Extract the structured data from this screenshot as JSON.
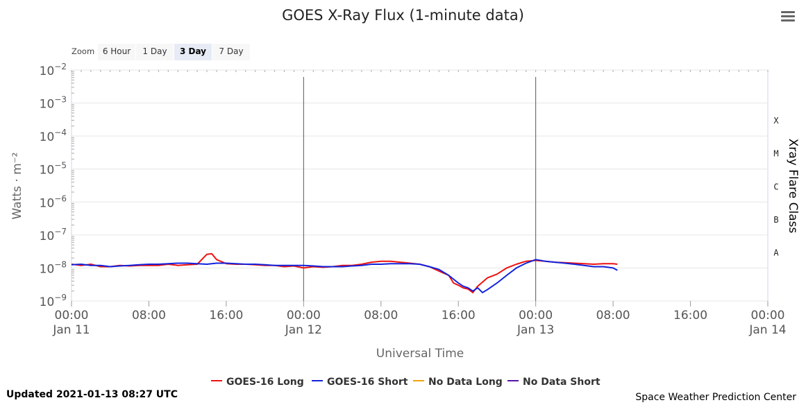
{
  "header": {
    "title": "GOES X-Ray Flux (1-minute data)",
    "menu_icon": "hamburger-menu-icon"
  },
  "zoom": {
    "label": "Zoom",
    "buttons": [
      "6 Hour",
      "1 Day",
      "3 Day",
      "7 Day"
    ],
    "active": "3 Day"
  },
  "footer": {
    "updated": "Updated 2021-01-13 08:27 UTC",
    "credit": "Space Weather Prediction Center"
  },
  "colors": {
    "long": "#ee1111",
    "short": "#1122dd",
    "nodata_long": "#f0a30a",
    "nodata_short": "#5511aa",
    "grid": "#e6e6e6",
    "plot_border": "#ccd6eb"
  },
  "chart_data": {
    "type": "line",
    "title": "GOES X-Ray Flux (1-minute data)",
    "xlabel": "Universal Time",
    "ylabel": "Watts · m⁻²",
    "y2label": "Xray Flare Class",
    "yscale": "log",
    "ylim": [
      1e-09,
      0.01
    ],
    "xlim": [
      "2021-01-11 00:00",
      "2021-01-14 00:00"
    ],
    "x_ticks": [
      {
        "label": "00:00",
        "date": "Jan 11"
      },
      {
        "label": "08:00",
        "date": ""
      },
      {
        "label": "16:00",
        "date": ""
      },
      {
        "label": "00:00",
        "date": "Jan 12"
      },
      {
        "label": "08:00",
        "date": ""
      },
      {
        "label": "16:00",
        "date": ""
      },
      {
        "label": "00:00",
        "date": "Jan 13"
      },
      {
        "label": "08:00",
        "date": ""
      },
      {
        "label": "16:00",
        "date": ""
      },
      {
        "label": "00:00",
        "date": "Jan 14"
      }
    ],
    "y_ticks": [
      {
        "base": "10",
        "exp": "−2"
      },
      {
        "base": "10",
        "exp": "−3"
      },
      {
        "base": "10",
        "exp": "−4"
      },
      {
        "base": "10",
        "exp": "−5"
      },
      {
        "base": "10",
        "exp": "−6"
      },
      {
        "base": "10",
        "exp": "−7"
      },
      {
        "base": "10",
        "exp": "−8"
      },
      {
        "base": "10",
        "exp": "−9"
      }
    ],
    "flare_classes": [
      {
        "label": "X",
        "flux": 0.0001
      },
      {
        "label": "M",
        "flux": 1e-05
      },
      {
        "label": "C",
        "flux": 1e-06
      },
      {
        "label": "B",
        "flux": 1e-07
      },
      {
        "label": "A",
        "flux": 1e-08
      }
    ],
    "vertical_markers": [
      "2021-01-12 00:00",
      "2021-01-13 00:00"
    ],
    "series": [
      {
        "name": "GOES-16 Long",
        "color": "#ee1111",
        "x": [
          "2021-01-11 00:00",
          "2021-01-11 01:00",
          "2021-01-11 02:00",
          "2021-01-11 03:00",
          "2021-01-11 04:00",
          "2021-01-11 05:00",
          "2021-01-11 06:00",
          "2021-01-11 07:00",
          "2021-01-11 08:00",
          "2021-01-11 09:00",
          "2021-01-11 10:00",
          "2021-01-11 11:00",
          "2021-01-11 12:00",
          "2021-01-11 13:00",
          "2021-01-11 14:00",
          "2021-01-11 14:30",
          "2021-01-11 15:00",
          "2021-01-11 16:00",
          "2021-01-11 17:00",
          "2021-01-11 18:00",
          "2021-01-11 19:00",
          "2021-01-11 20:00",
          "2021-01-11 21:00",
          "2021-01-11 22:00",
          "2021-01-11 23:00",
          "2021-01-12 00:00",
          "2021-01-12 01:00",
          "2021-01-12 02:00",
          "2021-01-12 03:00",
          "2021-01-12 04:00",
          "2021-01-12 05:00",
          "2021-01-12 06:00",
          "2021-01-12 07:00",
          "2021-01-12 08:00",
          "2021-01-12 09:00",
          "2021-01-12 10:00",
          "2021-01-12 11:00",
          "2021-01-12 12:00",
          "2021-01-12 13:00",
          "2021-01-12 14:00",
          "2021-01-12 15:00",
          "2021-01-12 15:30",
          "2021-01-12 16:00",
          "2021-01-12 16:30",
          "2021-01-12 17:00",
          "2021-01-12 17:30",
          "2021-01-12 18:00",
          "2021-01-12 19:00",
          "2021-01-12 20:00",
          "2021-01-12 21:00",
          "2021-01-12 22:00",
          "2021-01-12 23:00",
          "2021-01-13 00:00",
          "2021-01-13 01:00",
          "2021-01-13 02:00",
          "2021-01-13 03:00",
          "2021-01-13 04:00",
          "2021-01-13 05:00",
          "2021-01-13 06:00",
          "2021-01-13 07:00",
          "2021-01-13 08:00",
          "2021-01-13 08:27"
        ],
        "y": [
          1.3e-08,
          1.2e-08,
          1.3e-08,
          1.1e-08,
          1.1e-08,
          1.2e-08,
          1.15e-08,
          1.2e-08,
          1.2e-08,
          1.2e-08,
          1.3e-08,
          1.2e-08,
          1.25e-08,
          1.3e-08,
          2.6e-08,
          2.7e-08,
          1.8e-08,
          1.35e-08,
          1.3e-08,
          1.3e-08,
          1.25e-08,
          1.2e-08,
          1.2e-08,
          1.1e-08,
          1.15e-08,
          1e-08,
          1.1e-08,
          1.05e-08,
          1.1e-08,
          1.2e-08,
          1.2e-08,
          1.3e-08,
          1.5e-08,
          1.6e-08,
          1.6e-08,
          1.5e-08,
          1.4e-08,
          1.3e-08,
          1.1e-08,
          8e-09,
          6e-09,
          3.5e-09,
          3e-09,
          2.5e-09,
          2.3e-09,
          1.8e-09,
          2.8e-09,
          5e-09,
          6.5e-09,
          1e-08,
          1.3e-08,
          1.6e-08,
          1.7e-08,
          1.6e-08,
          1.5e-08,
          1.45e-08,
          1.4e-08,
          1.35e-08,
          1.3e-08,
          1.35e-08,
          1.35e-08,
          1.3e-08
        ]
      },
      {
        "name": "GOES-16 Short",
        "color": "#1122dd",
        "x": [
          "2021-01-11 00:00",
          "2021-01-11 01:00",
          "2021-01-11 02:00",
          "2021-01-11 03:00",
          "2021-01-11 04:00",
          "2021-01-11 05:00",
          "2021-01-11 06:00",
          "2021-01-11 07:00",
          "2021-01-11 08:00",
          "2021-01-11 09:00",
          "2021-01-11 10:00",
          "2021-01-11 11:00",
          "2021-01-11 12:00",
          "2021-01-11 13:00",
          "2021-01-11 14:00",
          "2021-01-11 15:00",
          "2021-01-11 16:00",
          "2021-01-11 17:00",
          "2021-01-11 18:00",
          "2021-01-11 19:00",
          "2021-01-11 20:00",
          "2021-01-11 21:00",
          "2021-01-11 22:00",
          "2021-01-11 23:00",
          "2021-01-12 00:00",
          "2021-01-12 01:00",
          "2021-01-12 02:00",
          "2021-01-12 03:00",
          "2021-01-12 04:00",
          "2021-01-12 05:00",
          "2021-01-12 06:00",
          "2021-01-12 07:00",
          "2021-01-12 08:00",
          "2021-01-12 09:00",
          "2021-01-12 10:00",
          "2021-01-12 11:00",
          "2021-01-12 12:00",
          "2021-01-12 13:00",
          "2021-01-12 14:00",
          "2021-01-12 15:00",
          "2021-01-12 16:00",
          "2021-01-12 16:30",
          "2021-01-12 17:00",
          "2021-01-12 17:30",
          "2021-01-12 18:00",
          "2021-01-12 18:30",
          "2021-01-12 19:00",
          "2021-01-12 20:00",
          "2021-01-12 21:00",
          "2021-01-12 22:00",
          "2021-01-12 23:00",
          "2021-01-13 00:00",
          "2021-01-13 01:00",
          "2021-01-13 02:00",
          "2021-01-13 03:00",
          "2021-01-13 04:00",
          "2021-01-13 05:00",
          "2021-01-13 06:00",
          "2021-01-13 07:00",
          "2021-01-13 08:00",
          "2021-01-13 08:27"
        ],
        "y": [
          1.25e-08,
          1.3e-08,
          1.2e-08,
          1.2e-08,
          1.1e-08,
          1.15e-08,
          1.2e-08,
          1.25e-08,
          1.3e-08,
          1.3e-08,
          1.35e-08,
          1.4e-08,
          1.4e-08,
          1.35e-08,
          1.3e-08,
          1.4e-08,
          1.4e-08,
          1.35e-08,
          1.3e-08,
          1.3e-08,
          1.25e-08,
          1.2e-08,
          1.2e-08,
          1.2e-08,
          1.2e-08,
          1.15e-08,
          1.1e-08,
          1.1e-08,
          1.1e-08,
          1.15e-08,
          1.2e-08,
          1.3e-08,
          1.3e-08,
          1.35e-08,
          1.35e-08,
          1.35e-08,
          1.3e-08,
          1.1e-08,
          9e-09,
          6e-09,
          3.5e-09,
          2.8e-09,
          2.5e-09,
          2e-09,
          2.5e-09,
          1.8e-09,
          2.2e-09,
          3.5e-09,
          6e-09,
          1e-08,
          1.4e-08,
          1.8e-08,
          1.6e-08,
          1.5e-08,
          1.4e-08,
          1.3e-08,
          1.2e-08,
          1.1e-08,
          1.1e-08,
          1e-08,
          8.5e-09
        ]
      },
      {
        "name": "No Data Long",
        "color": "#f0a30a",
        "x": [],
        "y": []
      },
      {
        "name": "No Data Short",
        "color": "#5511aa",
        "x": [],
        "y": []
      }
    ],
    "legend_position": "bottom"
  }
}
